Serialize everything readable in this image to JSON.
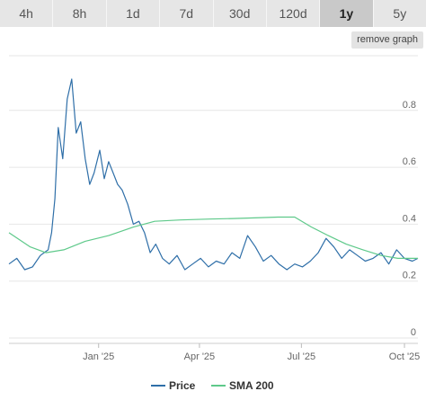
{
  "tabs": [
    {
      "label": "4h",
      "active": false
    },
    {
      "label": "8h",
      "active": false
    },
    {
      "label": "1d",
      "active": false
    },
    {
      "label": "7d",
      "active": false
    },
    {
      "label": "30d",
      "active": false
    },
    {
      "label": "120d",
      "active": false
    },
    {
      "label": "1y",
      "active": true
    },
    {
      "label": "5y",
      "active": false
    }
  ],
  "remove_graph_label": "remove graph",
  "colors": {
    "price": "#2f6fa8",
    "sma": "#5ec98a",
    "grid": "#e6e6e6"
  },
  "chart_data": {
    "type": "line",
    "xlabel": "",
    "ylabel": "",
    "x_ticks": [
      "Jan '25",
      "Apr '25",
      "Jul '25",
      "Oct '25"
    ],
    "x_tick_dates": [
      "2025-01-01",
      "2025-04-01",
      "2025-07-01",
      "2025-10-01"
    ],
    "x_range": [
      "2024-10-13",
      "2025-10-13"
    ],
    "y_ticks": [
      "0",
      "0.2",
      "0.4",
      "0.6",
      "0.8"
    ],
    "y_tick_values": [
      0,
      0.2,
      0.4,
      0.6,
      0.8
    ],
    "ylim": [
      0,
      1.0
    ],
    "grid": true,
    "legend_position": "bottom",
    "series": [
      {
        "name": "Price",
        "x": [
          "2024-10-13",
          "2024-10-20",
          "2024-10-27",
          "2024-11-03",
          "2024-11-10",
          "2024-11-17",
          "2024-11-20",
          "2024-11-23",
          "2024-11-26",
          "2024-11-30",
          "2024-12-04",
          "2024-12-08",
          "2024-12-12",
          "2024-12-16",
          "2024-12-20",
          "2024-12-24",
          "2024-12-28",
          "2025-01-02",
          "2025-01-06",
          "2025-01-10",
          "2025-01-14",
          "2025-01-18",
          "2025-01-22",
          "2025-01-27",
          "2025-02-01",
          "2025-02-06",
          "2025-02-11",
          "2025-02-16",
          "2025-02-21",
          "2025-02-27",
          "2025-03-05",
          "2025-03-12",
          "2025-03-19",
          "2025-03-26",
          "2025-04-02",
          "2025-04-09",
          "2025-04-16",
          "2025-04-23",
          "2025-04-30",
          "2025-05-07",
          "2025-05-14",
          "2025-05-21",
          "2025-05-28",
          "2025-06-04",
          "2025-06-11",
          "2025-06-18",
          "2025-06-25",
          "2025-07-02",
          "2025-07-09",
          "2025-07-16",
          "2025-07-23",
          "2025-07-30",
          "2025-08-06",
          "2025-08-13",
          "2025-08-20",
          "2025-08-27",
          "2025-09-03",
          "2025-09-10",
          "2025-09-17",
          "2025-09-24",
          "2025-10-01",
          "2025-10-08",
          "2025-10-13"
        ],
        "y": [
          0.26,
          0.28,
          0.24,
          0.25,
          0.29,
          0.31,
          0.37,
          0.49,
          0.74,
          0.63,
          0.84,
          0.91,
          0.72,
          0.76,
          0.63,
          0.54,
          0.58,
          0.66,
          0.56,
          0.62,
          0.58,
          0.54,
          0.52,
          0.47,
          0.4,
          0.41,
          0.37,
          0.3,
          0.33,
          0.28,
          0.26,
          0.29,
          0.24,
          0.26,
          0.28,
          0.25,
          0.27,
          0.26,
          0.3,
          0.28,
          0.36,
          0.32,
          0.27,
          0.29,
          0.26,
          0.24,
          0.26,
          0.25,
          0.27,
          0.3,
          0.35,
          0.32,
          0.28,
          0.31,
          0.29,
          0.27,
          0.28,
          0.3,
          0.26,
          0.31,
          0.28,
          0.27,
          0.28
        ]
      },
      {
        "name": "SMA 200",
        "x": [
          "2024-10-13",
          "2024-11-01",
          "2024-11-15",
          "2024-12-01",
          "2024-12-20",
          "2025-01-10",
          "2025-02-01",
          "2025-02-20",
          "2025-03-15",
          "2025-04-10",
          "2025-05-01",
          "2025-05-20",
          "2025-06-10",
          "2025-06-25",
          "2025-07-10",
          "2025-07-25",
          "2025-08-10",
          "2025-08-25",
          "2025-09-10",
          "2025-09-25",
          "2025-10-13"
        ],
        "y": [
          0.37,
          0.32,
          0.3,
          0.31,
          0.34,
          0.36,
          0.39,
          0.41,
          0.415,
          0.418,
          0.42,
          0.422,
          0.425,
          0.425,
          0.39,
          0.36,
          0.33,
          0.31,
          0.29,
          0.28,
          0.28
        ]
      }
    ]
  }
}
